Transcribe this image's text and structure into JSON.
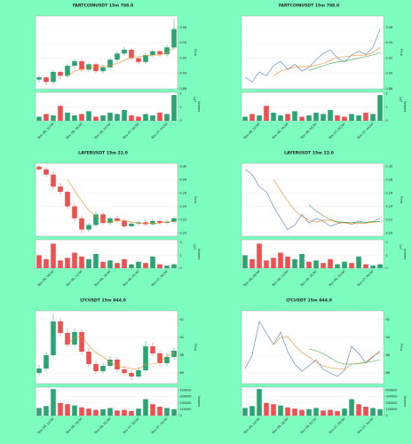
{
  "chart_data": [
    {
      "type": "candlestick",
      "title": "FARTCOINUSDT 15m 798.0",
      "ylabel": "Price",
      "volume_label": "Volume",
      "volume_offset": "1e7",
      "up_color": "#26a671",
      "down_color": "#ef4f4f",
      "categories": [
        null,
        null,
        "Nov 06, 12:00",
        null,
        null,
        null,
        "Nov 06, 16:00",
        null,
        null,
        null,
        "Nov 06, 20:00",
        null,
        null,
        null,
        "Nov 07, 00:00",
        null,
        null,
        null,
        "Nov 07, 04:00",
        null
      ],
      "ohlc": [
        [
          0.892,
          0.898,
          0.888,
          0.895
        ],
        [
          0.895,
          0.897,
          0.885,
          0.889
        ],
        [
          0.889,
          0.905,
          0.886,
          0.902
        ],
        [
          0.902,
          0.904,
          0.893,
          0.897
        ],
        [
          0.897,
          0.913,
          0.894,
          0.91
        ],
        [
          0.91,
          0.919,
          0.907,
          0.916
        ],
        [
          0.916,
          0.918,
          0.902,
          0.905
        ],
        [
          0.905,
          0.914,
          0.902,
          0.912
        ],
        [
          0.912,
          0.914,
          0.9,
          0.903
        ],
        [
          0.903,
          0.911,
          0.9,
          0.908
        ],
        [
          0.908,
          0.921,
          0.905,
          0.918
        ],
        [
          0.918,
          0.929,
          0.915,
          0.926
        ],
        [
          0.926,
          0.935,
          0.923,
          0.931
        ],
        [
          0.931,
          0.933,
          0.917,
          0.92
        ],
        [
          0.92,
          0.922,
          0.912,
          0.915
        ],
        [
          0.915,
          0.927,
          0.912,
          0.924
        ],
        [
          0.924,
          0.932,
          0.921,
          0.929
        ],
        [
          0.929,
          0.931,
          0.922,
          0.925
        ],
        [
          0.925,
          0.937,
          0.922,
          0.934
        ],
        [
          0.934,
          0.972,
          0.931,
          0.958
        ]
      ],
      "series": [
        {
          "color": "#f08a24",
          "values": [
            null,
            null,
            null,
            null,
            0.897,
            0.903,
            0.906,
            0.908,
            0.909,
            0.909,
            0.911,
            0.913,
            0.917,
            0.921,
            0.922,
            0.923,
            0.924,
            0.924,
            0.927,
            0.934
          ]
        }
      ],
      "ylim": [
        0.88,
        0.975
      ],
      "yticks": [
        0.88,
        {
          "value": 0.9,
          "label": "0.90"
        },
        0.92,
        0.94,
        0.96
      ],
      "volume": [
        0.3,
        0.5,
        0.4,
        1.1,
        0.6,
        0.4,
        0.5,
        0.7,
        0.3,
        0.4,
        0.6,
        0.5,
        0.8,
        0.4,
        0.3,
        0.5,
        0.4,
        0.6,
        0.5,
        1.9
      ],
      "volume_ylim": [
        0,
        2.1
      ],
      "volume_yticks": [
        0,
        1,
        2
      ],
      "grid": true
    },
    {
      "type": "line",
      "title": "FARTCOINUSDT 15m 798.0",
      "ylabel": "Price",
      "volume_label": "Volume",
      "volume_offset": "1e7",
      "up_color": "#26a671",
      "down_color": "#ef4f4f",
      "categories": [
        null,
        null,
        "Nov 06, 12:00",
        null,
        null,
        null,
        "Nov 06, 16:00",
        null,
        null,
        null,
        "Nov 06, 20:00",
        null,
        null,
        null,
        "Nov 07, 00:00",
        null,
        null,
        null,
        "Nov 07, 04:00",
        null
      ],
      "series": [
        {
          "color": "#4c7fc0",
          "values": [
            0.895,
            0.889,
            0.902,
            0.897,
            0.91,
            0.916,
            0.905,
            0.912,
            0.903,
            0.908,
            0.918,
            0.926,
            0.931,
            0.92,
            0.915,
            0.924,
            0.929,
            0.925,
            0.934,
            0.958
          ]
        },
        {
          "color": "#f08a24",
          "values": [
            null,
            null,
            null,
            null,
            0.897,
            0.903,
            0.906,
            0.908,
            0.909,
            0.909,
            0.911,
            0.913,
            0.917,
            0.921,
            0.922,
            0.923,
            0.924,
            0.924,
            0.927,
            0.934
          ]
        },
        {
          "color": "#3aa845",
          "values": [
            null,
            null,
            null,
            null,
            null,
            null,
            null,
            null,
            null,
            0.904,
            0.907,
            0.91,
            0.913,
            0.915,
            0.916,
            0.918,
            0.92,
            0.922,
            0.924,
            0.927
          ]
        }
      ],
      "ylim": [
        0.88,
        0.975
      ],
      "yticks": [
        0.88,
        {
          "value": 0.9,
          "label": "0.90"
        },
        0.92,
        0.94,
        0.96
      ],
      "volume": [
        0.3,
        0.5,
        0.4,
        1.1,
        0.6,
        0.4,
        0.5,
        0.7,
        0.3,
        0.4,
        0.6,
        0.5,
        0.8,
        0.4,
        0.3,
        0.5,
        0.4,
        0.6,
        0.5,
        1.9
      ],
      "volume_ylim": [
        0,
        2.1
      ],
      "volume_yticks": [
        0,
        1,
        2
      ],
      "grid": true
    },
    {
      "type": "candlestick",
      "title": "LAYERUSDT 15m 22.0",
      "ylabel": "Price",
      "volume_label": "Volume",
      "volume_offset": "1e7",
      "up_color": "#26a671",
      "down_color": "#ef4f4f",
      "categories": [
        null,
        null,
        "Nov 06, 08:00",
        null,
        null,
        null,
        "Nov 06, 12:00",
        null,
        null,
        null,
        "Nov 06, 16:00",
        null,
        null,
        null,
        "Nov 06, 20:00",
        null,
        null,
        null,
        "Nov 07, 00:00",
        null
      ],
      "ohlc": [
        [
          0.3,
          0.303,
          0.294,
          0.296
        ],
        [
          0.296,
          0.299,
          0.285,
          0.288
        ],
        [
          0.288,
          0.292,
          0.266,
          0.27
        ],
        [
          0.27,
          0.276,
          0.258,
          0.262
        ],
        [
          0.262,
          0.265,
          0.236,
          0.24
        ],
        [
          0.24,
          0.244,
          0.218,
          0.222
        ],
        [
          0.222,
          0.226,
          0.2,
          0.205
        ],
        [
          0.205,
          0.215,
          0.202,
          0.212
        ],
        [
          0.212,
          0.232,
          0.209,
          0.228
        ],
        [
          0.228,
          0.231,
          0.212,
          0.215
        ],
        [
          0.215,
          0.225,
          0.212,
          0.222
        ],
        [
          0.222,
          0.226,
          0.215,
          0.218
        ],
        [
          0.218,
          0.221,
          0.207,
          0.21
        ],
        [
          0.21,
          0.217,
          0.208,
          0.214
        ],
        [
          0.214,
          0.219,
          0.211,
          0.216
        ],
        [
          0.216,
          0.219,
          0.21,
          0.213
        ],
        [
          0.213,
          0.221,
          0.211,
          0.218
        ],
        [
          0.218,
          0.22,
          0.212,
          0.215
        ],
        [
          0.215,
          0.22,
          0.213,
          0.217
        ],
        [
          0.217,
          0.225,
          0.215,
          0.222
        ]
      ],
      "series": [
        {
          "color": "#f08a24",
          "values": [
            null,
            null,
            null,
            null,
            0.281,
            0.264,
            0.248,
            0.234,
            0.225,
            0.219,
            0.216,
            0.219,
            0.219,
            0.216,
            0.215,
            0.214,
            0.214,
            0.215,
            0.216,
            0.217
          ]
        }
      ],
      "ylim": [
        0.195,
        0.305
      ],
      "yticks": [
        {
          "value": 0.2,
          "label": "0.20"
        },
        0.22,
        0.24,
        0.26,
        0.28,
        {
          "value": 0.3,
          "label": "0.30"
        }
      ],
      "volume": [
        1.0,
        0.7,
        1.9,
        0.6,
        0.8,
        1.2,
        0.9,
        0.7,
        1.1,
        0.5,
        0.6,
        0.4,
        0.7,
        0.3,
        0.5,
        0.4,
        0.9,
        0.3,
        0.2,
        0.3
      ],
      "volume_ylim": [
        0,
        2.2
      ],
      "volume_yticks": [
        0,
        1,
        2
      ],
      "grid": true
    },
    {
      "type": "line",
      "title": "LAYERUSDT 15m 22.0",
      "ylabel": "Price",
      "volume_label": "Volume",
      "volume_offset": "1e7",
      "up_color": "#26a671",
      "down_color": "#ef4f4f",
      "categories": [
        null,
        null,
        "Nov 06, 08:00",
        null,
        null,
        null,
        "Nov 06, 12:00",
        null,
        null,
        null,
        "Nov 06, 16:00",
        null,
        null,
        null,
        "Nov 06, 20:00",
        null,
        null,
        null,
        "Nov 07, 00:00",
        null
      ],
      "series": [
        {
          "color": "#4c7fc0",
          "values": [
            0.296,
            0.288,
            0.27,
            0.262,
            0.24,
            0.222,
            0.205,
            0.212,
            0.228,
            0.215,
            0.222,
            0.218,
            0.21,
            0.214,
            0.216,
            0.213,
            0.218,
            0.215,
            0.217,
            0.222
          ]
        },
        {
          "color": "#f08a24",
          "values": [
            null,
            null,
            null,
            null,
            0.281,
            0.264,
            0.248,
            0.234,
            0.225,
            0.219,
            0.216,
            0.219,
            0.219,
            0.216,
            0.215,
            0.214,
            0.214,
            0.215,
            0.216,
            0.217
          ]
        },
        {
          "color": "#3aa845",
          "values": [
            null,
            null,
            null,
            null,
            null,
            null,
            null,
            null,
            null,
            0.242,
            0.233,
            0.226,
            0.22,
            0.217,
            0.216,
            0.216,
            0.216,
            0.216,
            0.217,
            0.217
          ]
        }
      ],
      "ylim": [
        0.195,
        0.305
      ],
      "yticks": [
        {
          "value": 0.2,
          "label": "0.20"
        },
        0.22,
        0.24,
        0.26,
        0.28,
        {
          "value": 0.3,
          "label": "0.30"
        }
      ],
      "volume": [
        1.0,
        0.7,
        1.9,
        0.6,
        0.8,
        1.2,
        0.9,
        0.7,
        1.1,
        0.5,
        0.6,
        0.4,
        0.7,
        0.3,
        0.5,
        0.4,
        0.9,
        0.3,
        0.2,
        0.3
      ],
      "volume_ylim": [
        0,
        2.2
      ],
      "volume_yticks": [
        0,
        1,
        2
      ],
      "grid": true
    },
    {
      "type": "candlestick",
      "title": "LTCUSDT 15m 844.0",
      "ylabel": "Price",
      "volume_label": "Volume",
      "up_color": "#26a671",
      "down_color": "#ef4f4f",
      "categories": [
        null,
        null,
        "Nov 06, 12:00",
        null,
        null,
        null,
        "Nov 06, 16:00",
        null,
        null,
        null,
        "Nov 06, 20:00",
        null,
        null,
        null,
        "Nov 07, 00:00",
        null,
        null,
        null,
        "Nov 07, 04:00",
        null
      ],
      "ohlc": [
        [
          86.0,
          86.9,
          85.6,
          86.5
        ],
        [
          86.5,
          88.4,
          86.2,
          88.0
        ],
        [
          88.0,
          92.6,
          87.8,
          91.8
        ],
        [
          91.8,
          92.2,
          90.1,
          90.5
        ],
        [
          90.5,
          91.0,
          88.9,
          89.2
        ],
        [
          89.2,
          91.0,
          88.9,
          90.6
        ],
        [
          90.6,
          90.9,
          88.1,
          88.4
        ],
        [
          88.4,
          88.8,
          86.7,
          87.0
        ],
        [
          87.0,
          87.4,
          85.9,
          86.2
        ],
        [
          86.2,
          87.2,
          85.9,
          86.8
        ],
        [
          86.8,
          87.9,
          86.5,
          87.5
        ],
        [
          87.5,
          87.8,
          86.1,
          86.4
        ],
        [
          86.4,
          86.8,
          85.7,
          86.0
        ],
        [
          86.0,
          86.4,
          85.2,
          85.6
        ],
        [
          85.6,
          86.7,
          85.3,
          86.3
        ],
        [
          86.3,
          89.6,
          86.1,
          89.0
        ],
        [
          89.0,
          89.4,
          87.9,
          88.2
        ],
        [
          88.2,
          88.5,
          86.8,
          87.1
        ],
        [
          87.1,
          88.2,
          86.8,
          87.8
        ],
        [
          87.8,
          88.9,
          87.5,
          88.5
        ]
      ],
      "series": [
        {
          "color": "#f08a24",
          "values": [
            null,
            null,
            null,
            null,
            89.2,
            90.0,
            90.1,
            89.1,
            88.3,
            87.8,
            87.2,
            86.8,
            86.6,
            86.5,
            86.4,
            87.0,
            87.0,
            87.2,
            87.9,
            88.3
          ]
        }
      ],
      "ylim": [
        84.8,
        93
      ],
      "yticks": [
        86,
        88,
        90,
        92
      ],
      "volume": [
        120000,
        150000,
        420000,
        200000,
        180000,
        160000,
        130000,
        110000,
        90000,
        100000,
        120000,
        80000,
        90000,
        70000,
        110000,
        260000,
        180000,
        140000,
        120000,
        100000
      ],
      "volume_ylim": [
        0,
        450000
      ],
      "volume_yticks": [
        0,
        100000,
        200000,
        300000,
        400000
      ],
      "grid": true
    },
    {
      "type": "line",
      "title": "LTCUSDT 15m 844.0",
      "ylabel": "Price",
      "volume_label": "Volume",
      "up_color": "#26a671",
      "down_color": "#ef4f4f",
      "categories": [
        null,
        null,
        "Nov 06, 12:00",
        null,
        null,
        null,
        "Nov 06, 16:00",
        null,
        null,
        null,
        "Nov 06, 20:00",
        null,
        null,
        null,
        "Nov 07, 00:00",
        null,
        null,
        null,
        "Nov 07, 04:00",
        null
      ],
      "series": [
        {
          "color": "#4c7fc0",
          "values": [
            86.5,
            88.0,
            91.8,
            90.5,
            89.2,
            90.6,
            88.4,
            87.0,
            86.2,
            86.8,
            87.5,
            86.4,
            86.0,
            85.6,
            86.3,
            89.0,
            88.2,
            87.1,
            87.8,
            88.5
          ]
        },
        {
          "color": "#f08a24",
          "values": [
            null,
            null,
            null,
            null,
            89.2,
            90.0,
            90.1,
            89.1,
            88.3,
            87.8,
            87.2,
            86.8,
            86.6,
            86.5,
            86.4,
            87.0,
            87.0,
            87.2,
            87.9,
            88.3
          ]
        },
        {
          "color": "#3aa845",
          "values": [
            null,
            null,
            null,
            null,
            null,
            null,
            null,
            null,
            null,
            88.7,
            88.5,
            88.2,
            87.7,
            87.2,
            87.0,
            87.0,
            87.1,
            87.2,
            87.3,
            87.5
          ]
        }
      ],
      "ylim": [
        84.8,
        93
      ],
      "yticks": [
        86,
        88,
        90,
        92
      ],
      "volume": [
        120000,
        150000,
        420000,
        200000,
        180000,
        160000,
        130000,
        110000,
        90000,
        100000,
        120000,
        80000,
        90000,
        70000,
        110000,
        260000,
        180000,
        140000,
        120000,
        100000
      ],
      "volume_ylim": [
        0,
        450000
      ],
      "volume_yticks": [
        0,
        100000,
        200000,
        300000,
        400000
      ],
      "grid": true
    }
  ]
}
